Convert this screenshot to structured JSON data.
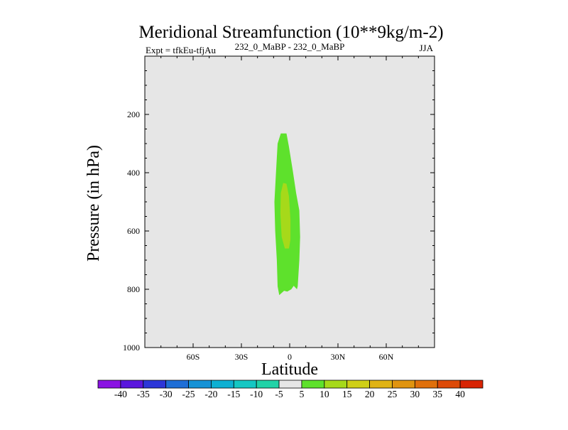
{
  "chart_data": {
    "type": "contour",
    "title": "Meridional Streamfunction (10**9kg/m-2)",
    "subtitle_left": "Expt = tfkEu-tfjAu",
    "subtitle_center": "232_0_MaBP - 232_0_MaBP",
    "subtitle_right": "JJA",
    "xlabel": "Latitude",
    "ylabel": "Pressure (in hPa)",
    "xlim": [
      -90,
      90
    ],
    "ylim": [
      1000,
      0
    ],
    "x_ticks": [
      {
        "value": -60,
        "label": "60S"
      },
      {
        "value": -30,
        "label": "30S"
      },
      {
        "value": 0,
        "label": "0"
      },
      {
        "value": 30,
        "label": "30N"
      },
      {
        "value": 60,
        "label": "60N"
      }
    ],
    "y_ticks": [
      {
        "value": 200,
        "label": "200"
      },
      {
        "value": 400,
        "label": "400"
      },
      {
        "value": 600,
        "label": "600"
      },
      {
        "value": 800,
        "label": "800"
      },
      {
        "value": 1000,
        "label": "1000"
      }
    ],
    "background_color": "#e6e6e6",
    "contour_regions": [
      {
        "level": "5 to 10",
        "color": "#5ee12c",
        "outline": [
          [
            -5.5,
            265
          ],
          [
            -2,
            265
          ],
          [
            -0.5,
            310
          ],
          [
            2,
            395
          ],
          [
            4,
            470
          ],
          [
            6,
            530
          ],
          [
            6.5,
            620
          ],
          [
            6,
            700
          ],
          [
            5,
            790
          ],
          [
            4.5,
            800
          ],
          [
            2.5,
            788
          ],
          [
            1,
            800
          ],
          [
            -1.5,
            808
          ],
          [
            -3.5,
            805
          ],
          [
            -6.5,
            820
          ],
          [
            -7.5,
            790
          ],
          [
            -8,
            700
          ],
          [
            -9,
            600
          ],
          [
            -9.5,
            500
          ],
          [
            -8.5,
            400
          ],
          [
            -7.5,
            300
          ]
        ]
      },
      {
        "level": "10 to 15",
        "color": "#a6d91a",
        "outline": [
          [
            -4,
            435
          ],
          [
            -2,
            438
          ],
          [
            -0.5,
            480
          ],
          [
            0.5,
            560
          ],
          [
            0.5,
            630
          ],
          [
            -0.5,
            660
          ],
          [
            -3,
            660
          ],
          [
            -5,
            620
          ],
          [
            -5.8,
            540
          ],
          [
            -5.5,
            470
          ]
        ]
      }
    ],
    "colorbar": {
      "labels": [
        "-40",
        "-35",
        "-30",
        "-25",
        "-20",
        "-15",
        "-10",
        "-5",
        "5",
        "10",
        "15",
        "20",
        "25",
        "30",
        "35",
        "40"
      ],
      "colors": [
        "#8a12e3",
        "#5a16dd",
        "#2c36d8",
        "#1e6ed6",
        "#1592d6",
        "#0eb0d2",
        "#15c7c3",
        "#21d2a7",
        "#e6e6e6",
        "#5ee12c",
        "#a6d91a",
        "#cfcf16",
        "#e0b314",
        "#e0940f",
        "#e0700b",
        "#dd4a08",
        "#d82404"
      ]
    }
  }
}
